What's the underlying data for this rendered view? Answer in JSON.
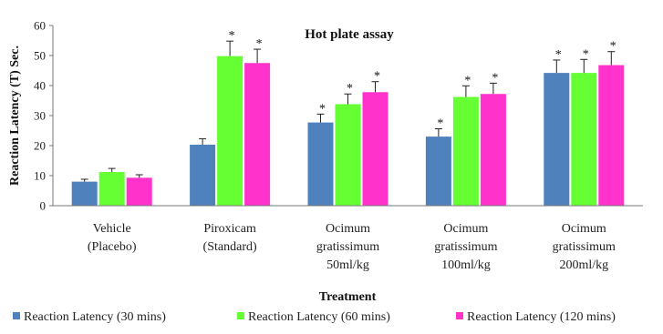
{
  "chart_data": {
    "type": "bar",
    "title": "Hot plate assay",
    "xlabel": "Treatment",
    "ylabel": "Reaction Latency (T) Sec.",
    "ylim": [
      0,
      60
    ],
    "yticks": [
      0,
      10,
      20,
      30,
      40,
      50,
      60
    ],
    "grid": false,
    "legend_position": "bottom",
    "categories": [
      [
        "Vehicle",
        "(Placebo)"
      ],
      [
        "Piroxicam",
        "(Standard)"
      ],
      [
        "Ocimum",
        "gratissimum",
        "50ml/kg"
      ],
      [
        "Ocimum",
        "gratissimum",
        "100ml/kg"
      ],
      [
        "Ocimum",
        "gratissimum",
        "200ml/kg"
      ]
    ],
    "series": [
      {
        "name": "Reaction Latency (30 mins)",
        "color": "#4f81bd",
        "values": [
          8,
          20.3,
          27.7,
          23,
          44.2
        ],
        "errors": [
          0.8,
          2.0,
          2.8,
          2.6,
          4.3
        ],
        "significant": [
          false,
          false,
          true,
          true,
          true
        ]
      },
      {
        "name": "Reaction Latency (60 mins)",
        "color": "#66ff33",
        "values": [
          11.2,
          49.8,
          33.8,
          36.2,
          44.2
        ],
        "errors": [
          1.2,
          5.0,
          3.4,
          3.7,
          4.5
        ],
        "significant": [
          false,
          true,
          true,
          true,
          true
        ]
      },
      {
        "name": "Reaction Latency (120 mins)",
        "color": "#ff33cc",
        "values": [
          9.3,
          47.5,
          37.8,
          37.2,
          46.8
        ],
        "errors": [
          1.0,
          4.6,
          3.5,
          3.6,
          4.5
        ],
        "significant": [
          false,
          true,
          true,
          true,
          true
        ]
      }
    ],
    "significance_marker": "*"
  }
}
